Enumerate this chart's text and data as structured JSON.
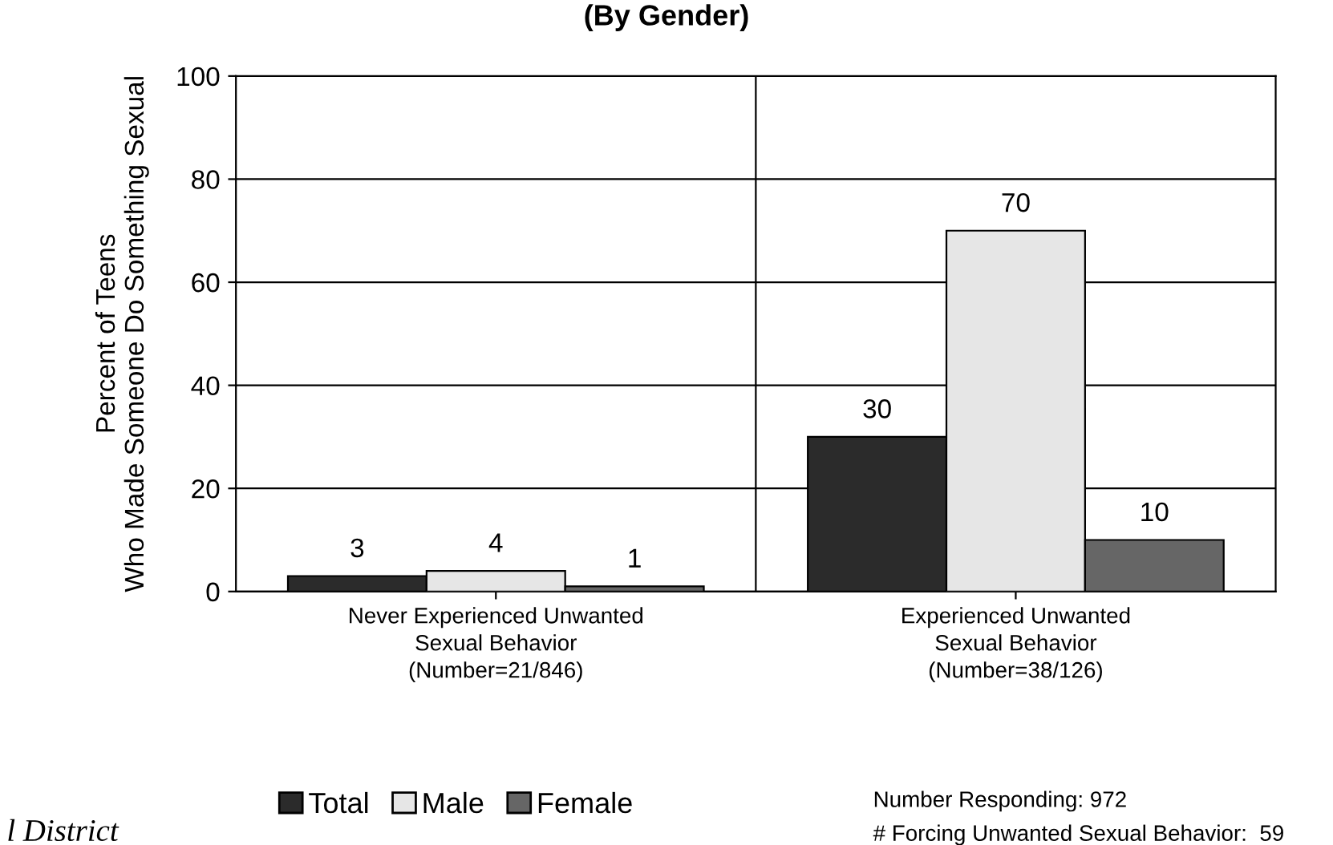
{
  "chart_data": {
    "type": "bar",
    "title": "(By Gender)",
    "ylabel": "Percent of Teens\nWho Made Someone Do Something Sexual",
    "categories": [
      "Never Experienced Unwanted\nSexual Behavior\n(Number=21/846)",
      "Experienced Unwanted\nSexual Behavior\n(Number=38/126)"
    ],
    "series": [
      {
        "name": "Total",
        "color": "#2b2b2b",
        "values": [
          3,
          30
        ]
      },
      {
        "name": "Male",
        "color": "#e6e6e6",
        "values": [
          4,
          70
        ]
      },
      {
        "name": "Female",
        "color": "#666666",
        "values": [
          1,
          10
        ]
      }
    ],
    "ylim": [
      0,
      100
    ],
    "yticks": [
      0,
      20,
      40,
      60,
      80,
      100
    ],
    "grid": "y",
    "legend": "bottom left",
    "data_labels": true,
    "annotations": [
      "Number Responding: 972",
      "# Forcing Unwanted Sexual Behavior:  59",
      "l District"
    ]
  }
}
